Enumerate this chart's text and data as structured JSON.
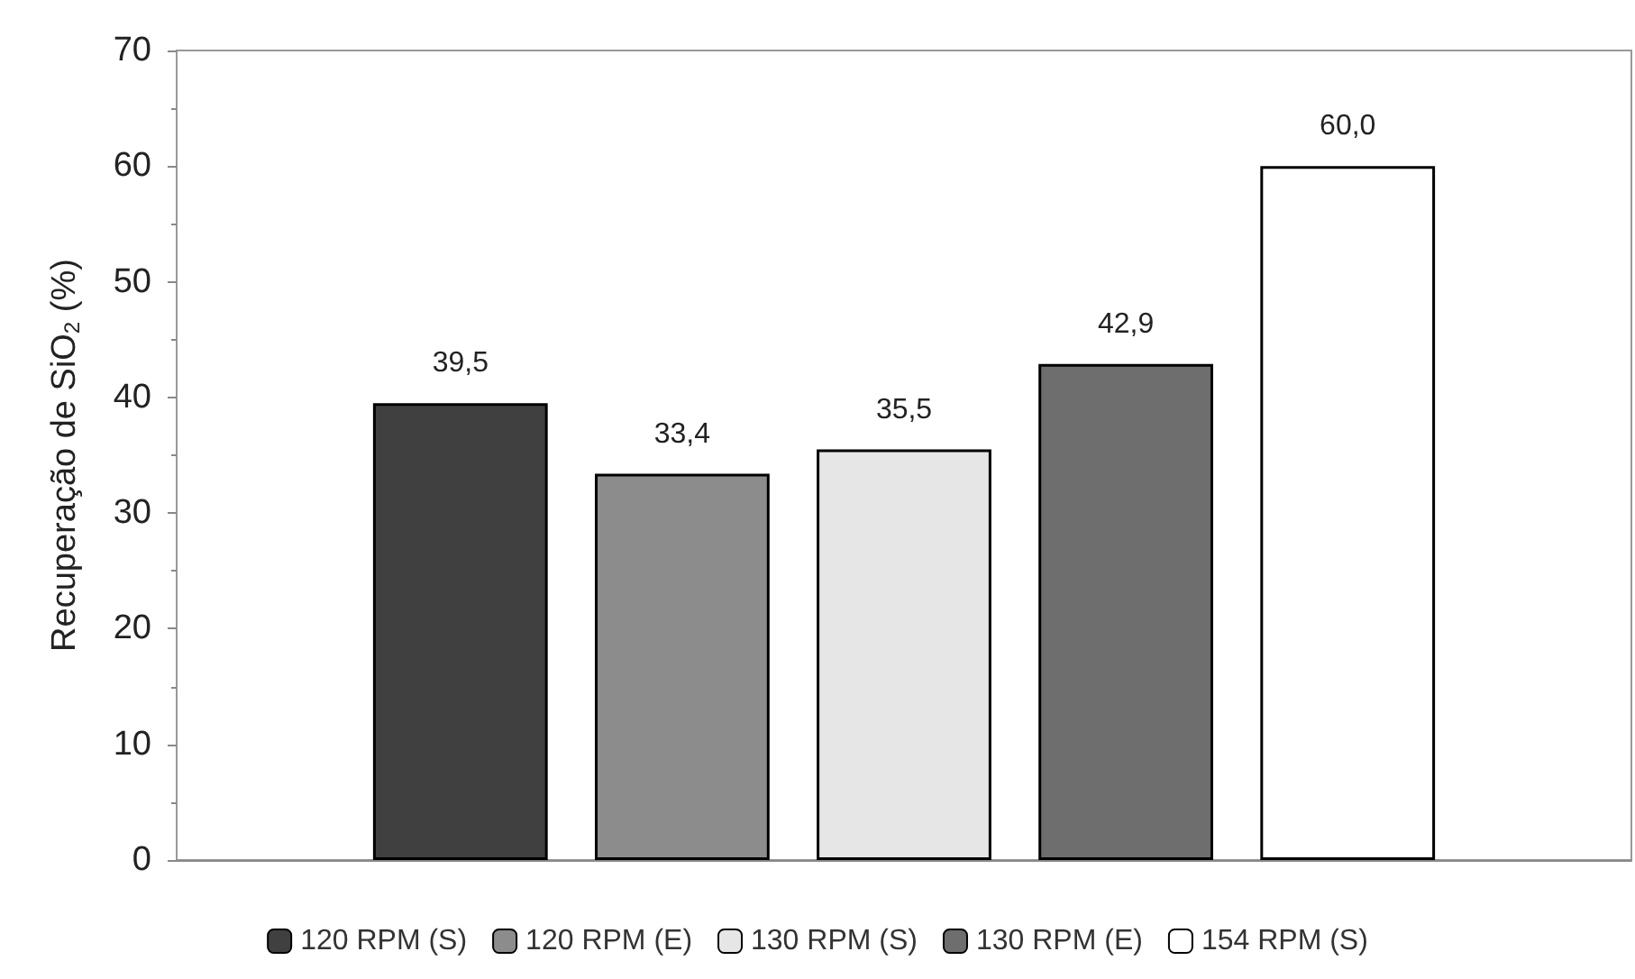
{
  "chart_data": {
    "type": "bar",
    "ylabel": "Recuperação de SiO$_{2}$ (%)",
    "categories": [
      null
    ],
    "series": [
      {
        "name": "120 RPM (S)",
        "color": "#404040",
        "values": [
          39.5
        ],
        "value_labels": [
          "39,5"
        ]
      },
      {
        "name": "120 RPM (E)",
        "color": "#8c8c8c",
        "values": [
          33.4
        ],
        "value_labels": [
          "33,4"
        ]
      },
      {
        "name": "130 RPM (S)",
        "color": "#e6e6e6",
        "values": [
          35.5
        ],
        "value_labels": [
          "35,5"
        ]
      },
      {
        "name": "130 RPM (E)",
        "color": "#6e6e6e",
        "values": [
          42.9
        ],
        "value_labels": [
          "42,9"
        ]
      },
      {
        "name": "154 RPM (S)",
        "color": "#ffffff",
        "values": [
          60.0
        ],
        "value_labels": [
          "60,0"
        ]
      }
    ],
    "ylim": [
      0,
      70
    ],
    "yticks": [
      0,
      10,
      20,
      30,
      40,
      50,
      60,
      70
    ],
    "grid": false,
    "legend": "bottom"
  }
}
